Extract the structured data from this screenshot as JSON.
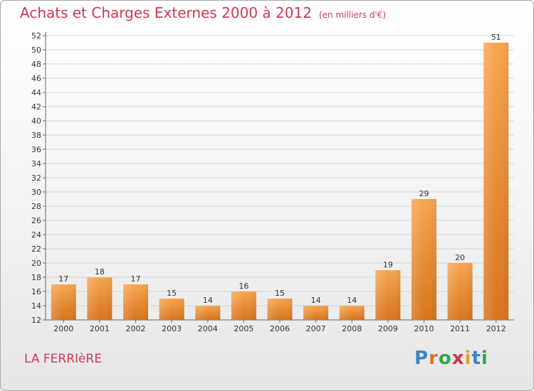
{
  "title": "Achats et Charges Externes 2000 à 2012",
  "title_unit": "(en milliers d'€)",
  "location": "LA FERRIèRE",
  "logo": {
    "text": "Proxiti",
    "letters": [
      {
        "ch": "P",
        "color": "#3b84c9"
      },
      {
        "ch": "r",
        "color": "#e0712d"
      },
      {
        "ch": "o",
        "color": "#2fa84f"
      },
      {
        "ch": "x",
        "color": "#d03247"
      },
      {
        "ch": "i",
        "color": "#e0a321"
      },
      {
        "ch": "t",
        "color": "#3b84c9"
      },
      {
        "ch": "i",
        "color": "#2fa84f"
      }
    ]
  },
  "colors": {
    "title": "#cc3a53",
    "bar_top": "#f6a550",
    "bar_bottom": "#d8741c",
    "grid": "#d4d4d4"
  },
  "chart_data": {
    "type": "bar",
    "categories": [
      "2000",
      "2001",
      "2002",
      "2003",
      "2004",
      "2005",
      "2006",
      "2007",
      "2008",
      "2009",
      "2010",
      "2011",
      "2012"
    ],
    "values": [
      17,
      18,
      17,
      15,
      14,
      16,
      15,
      14,
      14,
      19,
      29,
      20,
      51
    ],
    "ylim": [
      12,
      52
    ],
    "yticks": [
      12,
      14,
      16,
      18,
      20,
      22,
      24,
      26,
      28,
      30,
      32,
      34,
      36,
      38,
      40,
      42,
      44,
      46,
      48,
      50,
      52
    ],
    "grid": true,
    "xlabel": "",
    "ylabel": ""
  }
}
